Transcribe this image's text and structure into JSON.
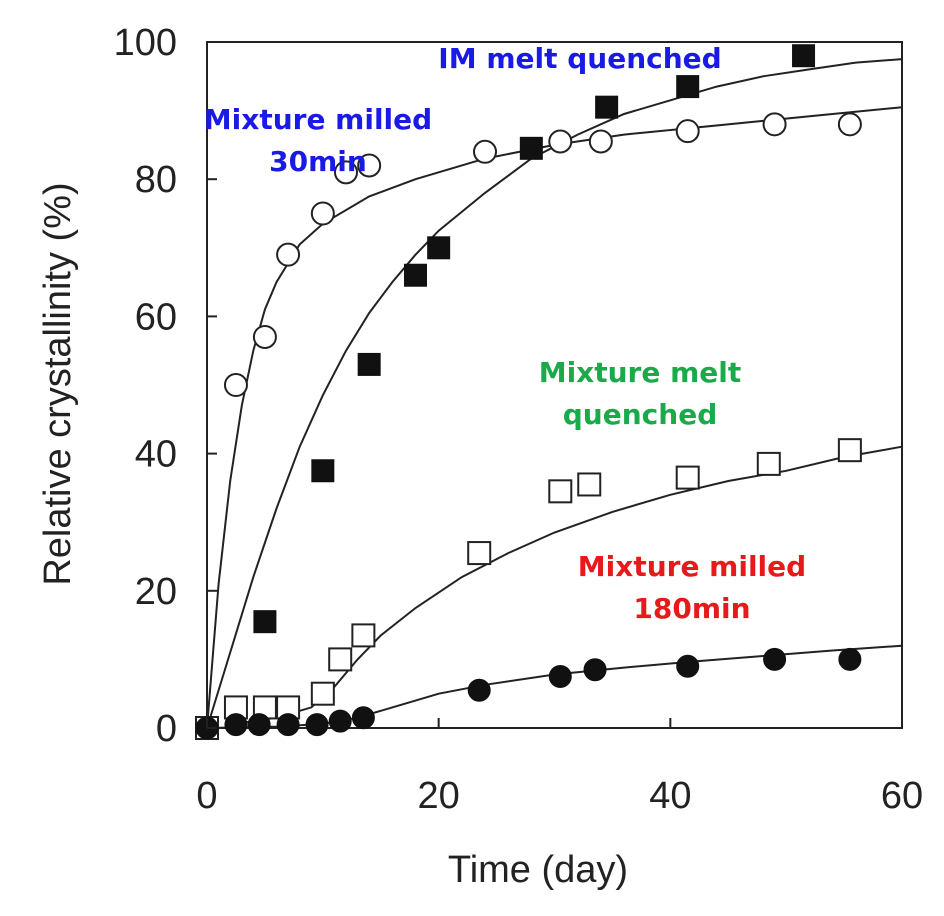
{
  "chart_data": {
    "type": "scatter",
    "xlabel": "Time (day)",
    "ylabel": "Relative crystallinity (%)",
    "xlim": [
      0,
      60
    ],
    "ylim": [
      0,
      100
    ],
    "xticks": [
      0,
      20,
      40,
      60
    ],
    "yticks": [
      0,
      20,
      40,
      60,
      80,
      100
    ],
    "grid": false,
    "series": [
      {
        "marker": "open-circle",
        "points": [
          [
            0,
            0
          ],
          [
            2.5,
            50
          ],
          [
            5,
            57
          ],
          [
            7,
            69
          ],
          [
            10,
            75
          ],
          [
            12,
            81
          ],
          [
            14,
            82
          ],
          [
            24,
            84
          ],
          [
            30.5,
            85.5
          ],
          [
            34,
            85.5
          ],
          [
            41.5,
            87
          ],
          [
            49,
            88
          ],
          [
            55.5,
            88
          ]
        ],
        "curve": [
          [
            0,
            0
          ],
          [
            1,
            21
          ],
          [
            2,
            36
          ],
          [
            3,
            47
          ],
          [
            4,
            55
          ],
          [
            5,
            61
          ],
          [
            6,
            65
          ],
          [
            8,
            70.5
          ],
          [
            10,
            73.5
          ],
          [
            14,
            77.5
          ],
          [
            18,
            80
          ],
          [
            24,
            83
          ],
          [
            30,
            85
          ],
          [
            36,
            86.5
          ],
          [
            42,
            87.5
          ],
          [
            48,
            88.5
          ],
          [
            54,
            89.5
          ],
          [
            60,
            90.5
          ]
        ]
      },
      {
        "marker": "filled-square",
        "points": [
          [
            0,
            0
          ],
          [
            5,
            15.5
          ],
          [
            10,
            37.5
          ],
          [
            14,
            53
          ],
          [
            18,
            66
          ],
          [
            20,
            70
          ],
          [
            28,
            84.5
          ],
          [
            34.5,
            90.5
          ],
          [
            41.5,
            93.5
          ],
          [
            51.5,
            98
          ]
        ],
        "curve": [
          [
            0,
            0
          ],
          [
            2,
            11
          ],
          [
            4,
            22
          ],
          [
            6,
            32
          ],
          [
            8,
            41
          ],
          [
            10,
            48.5
          ],
          [
            12,
            55
          ],
          [
            14,
            60.5
          ],
          [
            16,
            65
          ],
          [
            18,
            69
          ],
          [
            20,
            72.5
          ],
          [
            24,
            78
          ],
          [
            28,
            83
          ],
          [
            32,
            86.5
          ],
          [
            36,
            89.5
          ],
          [
            40,
            91.5
          ],
          [
            44,
            93.5
          ],
          [
            48,
            95
          ],
          [
            52,
            96
          ],
          [
            56,
            97
          ],
          [
            60,
            97.5
          ]
        ]
      },
      {
        "marker": "open-square",
        "points": [
          [
            0,
            0
          ],
          [
            2.5,
            3
          ],
          [
            5,
            3
          ],
          [
            7,
            3
          ],
          [
            10,
            5
          ],
          [
            11.5,
            10
          ],
          [
            13.5,
            13.5
          ],
          [
            23.5,
            25.5
          ],
          [
            30.5,
            34.5
          ],
          [
            33,
            35.5
          ],
          [
            41.5,
            36.5
          ],
          [
            48.5,
            38.5
          ],
          [
            55.5,
            40.5
          ]
        ],
        "curve": [
          [
            2,
            0.5
          ],
          [
            6,
            1.5
          ],
          [
            9,
            3
          ],
          [
            11,
            6
          ],
          [
            13,
            10
          ],
          [
            15,
            13.5
          ],
          [
            18,
            17.5
          ],
          [
            22,
            22
          ],
          [
            26,
            25.5
          ],
          [
            30,
            28.5
          ],
          [
            35,
            31.5
          ],
          [
            40,
            34
          ],
          [
            45,
            36
          ],
          [
            50,
            37.5
          ],
          [
            55,
            39.5
          ],
          [
            60,
            41
          ]
        ]
      },
      {
        "marker": "filled-circle",
        "points": [
          [
            0,
            0
          ],
          [
            2.5,
            0.5
          ],
          [
            4.5,
            0.5
          ],
          [
            7,
            0.5
          ],
          [
            9.5,
            0.5
          ],
          [
            11.5,
            1
          ],
          [
            13.5,
            1.5
          ],
          [
            23.5,
            5.5
          ],
          [
            30.5,
            7.5
          ],
          [
            33.5,
            8.5
          ],
          [
            41.5,
            9
          ],
          [
            49,
            10
          ],
          [
            55.5,
            10
          ]
        ],
        "curve": [
          [
            0,
            0
          ],
          [
            6,
            0.2
          ],
          [
            10,
            0.6
          ],
          [
            13,
            1.5
          ],
          [
            16,
            3
          ],
          [
            20,
            5
          ],
          [
            24,
            6.3
          ],
          [
            30,
            7.8
          ],
          [
            36,
            8.8
          ],
          [
            42,
            9.7
          ],
          [
            48,
            10.5
          ],
          [
            54,
            11.3
          ],
          [
            60,
            12
          ]
        ]
      }
    ],
    "annotations": [
      {
        "lines": [
          "IM melt quenched"
        ],
        "color": "#1a1ae6"
      },
      {
        "lines": [
          "Mixture milled",
          "30min"
        ],
        "color": "#1a1ae6"
      },
      {
        "lines": [
          "Mixture melt",
          "quenched"
        ],
        "color": "#1aaa4a"
      },
      {
        "lines": [
          "Mixture milled",
          "180min"
        ],
        "color": "#e61a1a"
      }
    ]
  }
}
